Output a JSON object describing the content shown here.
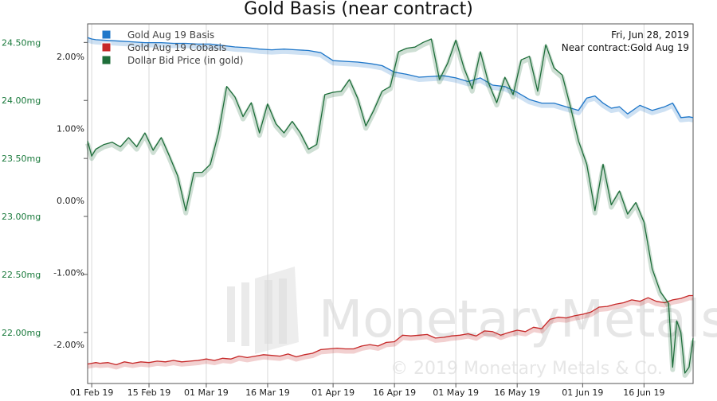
{
  "chart_data": {
    "type": "line",
    "title": "Gold Basis (near contract)",
    "info": {
      "date": "Fri, Jun 28, 2019",
      "contract": "Near contract:Gold Aug 19"
    },
    "x_ticks": [
      "01 Feb 19",
      "15 Feb 19",
      "01 Mar 19",
      "16 Mar 19",
      "01 Apr 19",
      "16 Apr 19",
      "01 May 19",
      "16 May 19",
      "01 Jun 19",
      "16 Jun 19"
    ],
    "x_tick_days": [
      1,
      15,
      29,
      44,
      60,
      75,
      90,
      105,
      121,
      136
    ],
    "x_range_days": [
      0,
      148
    ],
    "y_left_ticks": [
      "24.50mg",
      "24.00mg",
      "23.50mg",
      "23.00mg",
      "22.50mg",
      "22.00mg"
    ],
    "y_left_tick_values": [
      24.5,
      24.0,
      23.5,
      23.0,
      22.5,
      22.0
    ],
    "y_left_range": [
      21.56,
      24.66
    ],
    "y_mid_ticks": [
      "2.00%",
      "1.00%",
      "0.00%",
      "-1.00%",
      "-2.00%"
    ],
    "y_mid_tick_values": [
      2.0,
      1.0,
      0.0,
      -1.0,
      -2.0
    ],
    "y_mid_range": [
      -2.54,
      2.45
    ],
    "series": [
      {
        "name": "Gold Aug 19 Basis",
        "color": "#1f77c9",
        "axis": "pct",
        "x": [
          0,
          1,
          2,
          5,
          8,
          11,
          14,
          18,
          21,
          24,
          27,
          30,
          33,
          36,
          39,
          42,
          45,
          48,
          51,
          54,
          57,
          60,
          63,
          66,
          69,
          72,
          75,
          78,
          81,
          84,
          87,
          90,
          93,
          96,
          99,
          102,
          105,
          108,
          111,
          114,
          117,
          120,
          122,
          124,
          126,
          128,
          130,
          132,
          135,
          138,
          141,
          143,
          145,
          147,
          148
        ],
        "values": [
          2.26,
          2.24,
          2.23,
          2.22,
          2.21,
          2.2,
          2.19,
          2.19,
          2.18,
          2.18,
          2.17,
          2.17,
          2.15,
          2.13,
          2.12,
          2.1,
          2.09,
          2.1,
          2.09,
          2.08,
          2.05,
          1.94,
          1.93,
          1.92,
          1.9,
          1.87,
          1.78,
          1.75,
          1.71,
          1.72,
          1.73,
          1.7,
          1.65,
          1.7,
          1.6,
          1.58,
          1.5,
          1.4,
          1.35,
          1.35,
          1.3,
          1.25,
          1.42,
          1.45,
          1.35,
          1.28,
          1.3,
          1.2,
          1.32,
          1.25,
          1.3,
          1.35,
          1.15,
          1.16,
          1.15
        ]
      },
      {
        "name": "Gold Aug 19 Cobasis",
        "color": "#c62828",
        "axis": "pct",
        "x": [
          0,
          1,
          2,
          3,
          5,
          7,
          9,
          11,
          13,
          15,
          17,
          19,
          21,
          23,
          25,
          27,
          29,
          31,
          33,
          35,
          37,
          39,
          41,
          43,
          45,
          47,
          49,
          51,
          53,
          55,
          57,
          59,
          61,
          63,
          65,
          67,
          69,
          71,
          73,
          75,
          77,
          79,
          81,
          83,
          85,
          87,
          89,
          91,
          93,
          95,
          97,
          99,
          101,
          103,
          105,
          107,
          109,
          111,
          113,
          115,
          117,
          119,
          121,
          123,
          125,
          127,
          129,
          131,
          133,
          135,
          137,
          139,
          141,
          143,
          145,
          147,
          148
        ],
        "values": [
          -2.27,
          -2.26,
          -2.25,
          -2.26,
          -2.25,
          -2.28,
          -2.24,
          -2.26,
          -2.24,
          -2.25,
          -2.23,
          -2.24,
          -2.22,
          -2.24,
          -2.23,
          -2.22,
          -2.2,
          -2.22,
          -2.19,
          -2.2,
          -2.16,
          -2.18,
          -2.16,
          -2.14,
          -2.15,
          -2.16,
          -2.13,
          -2.17,
          -2.14,
          -2.12,
          -2.07,
          -2.06,
          -2.05,
          -2.06,
          -2.06,
          -2.02,
          -2.0,
          -2.02,
          -1.97,
          -1.96,
          -1.87,
          -1.88,
          -1.87,
          -1.86,
          -1.91,
          -1.9,
          -1.88,
          -1.87,
          -1.85,
          -1.88,
          -1.81,
          -1.82,
          -1.87,
          -1.83,
          -1.8,
          -1.82,
          -1.76,
          -1.78,
          -1.65,
          -1.62,
          -1.63,
          -1.6,
          -1.58,
          -1.55,
          -1.48,
          -1.47,
          -1.44,
          -1.42,
          -1.38,
          -1.4,
          -1.35,
          -1.4,
          -1.42,
          -1.38,
          -1.36,
          -1.32,
          -1.32
        ]
      },
      {
        "name": "Dollar Bid Price (in gold)",
        "color": "#1e6e3a",
        "axis": "mg",
        "x": [
          0,
          1,
          2,
          4,
          6,
          8,
          10,
          12,
          14,
          16,
          18,
          20,
          22,
          24,
          26,
          28,
          30,
          32,
          34,
          36,
          38,
          40,
          42,
          44,
          46,
          48,
          50,
          52,
          54,
          56,
          58,
          60,
          62,
          64,
          66,
          68,
          70,
          72,
          74,
          76,
          78,
          80,
          82,
          84,
          86,
          88,
          90,
          92,
          94,
          96,
          98,
          100,
          102,
          104,
          106,
          108,
          110,
          112,
          114,
          116,
          118,
          120,
          122,
          124,
          126,
          128,
          130,
          132,
          134,
          136,
          138,
          140,
          142,
          143,
          144,
          145,
          146,
          147,
          148
        ],
        "values": [
          23.65,
          23.52,
          23.58,
          23.62,
          23.64,
          23.6,
          23.68,
          23.6,
          23.72,
          23.57,
          23.68,
          23.52,
          23.35,
          23.05,
          23.38,
          23.38,
          23.45,
          23.72,
          24.12,
          24.03,
          23.86,
          23.98,
          23.72,
          23.97,
          23.8,
          23.72,
          23.82,
          23.72,
          23.58,
          23.62,
          24.05,
          24.07,
          24.08,
          24.18,
          24.02,
          23.78,
          23.92,
          24.08,
          24.12,
          24.42,
          24.45,
          24.46,
          24.5,
          24.53,
          24.18,
          24.32,
          24.52,
          24.28,
          24.1,
          24.42,
          24.15,
          23.98,
          24.2,
          24.05,
          24.35,
          24.38,
          24.08,
          24.48,
          24.28,
          24.22,
          23.95,
          23.65,
          23.45,
          23.05,
          23.45,
          23.1,
          23.22,
          23.02,
          23.12,
          22.95,
          22.55,
          22.35,
          22.25,
          21.7,
          22.1,
          22.0,
          21.65,
          21.7,
          21.95
        ]
      }
    ],
    "legend_position": "top-left",
    "grid": "vertical",
    "watermark": {
      "brand": "MonetaryMetals",
      "copyright": "© 2019 Monetary Metals & Co."
    }
  }
}
